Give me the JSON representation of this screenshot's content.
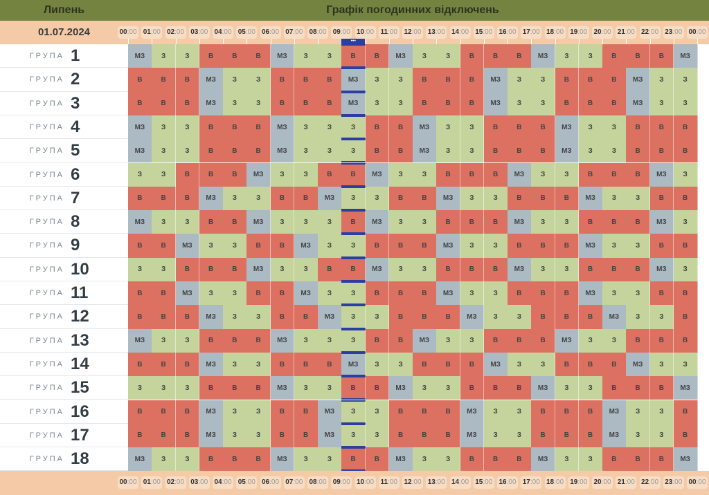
{
  "header": {
    "month": "Липень",
    "title": "Графік погодинних відключень",
    "date": "01.07.2024"
  },
  "hours": [
    "00",
    "01",
    "02",
    "03",
    "04",
    "05",
    "06",
    "07",
    "08",
    "09",
    "10",
    "11",
    "12",
    "13",
    "14",
    "15",
    "16",
    "17",
    "18",
    "19",
    "20",
    "21",
    "22",
    "23",
    "00"
  ],
  "minutes": ":00",
  "group_word": "ГРУПА",
  "current_hour": "09:00",
  "current_marker": "•••",
  "colors": {
    "В": "#dc7161",
    "З": "#c5d49c",
    "МЗ": "#abbac3",
    "header": "#748440",
    "band": "#f5cba7",
    "current": "#2c3ea0"
  },
  "groups": [
    {
      "num": "1",
      "cells": [
        "МЗ",
        "З",
        "З",
        "В",
        "В",
        "В",
        "МЗ",
        "З",
        "З",
        "В",
        "В",
        "МЗ",
        "З",
        "З",
        "В",
        "В",
        "В",
        "МЗ",
        "З",
        "З",
        "В",
        "В",
        "В",
        "МЗ"
      ]
    },
    {
      "num": "2",
      "cells": [
        "В",
        "В",
        "В",
        "МЗ",
        "З",
        "З",
        "В",
        "В",
        "В",
        "МЗ",
        "З",
        "З",
        "В",
        "В",
        "В",
        "МЗ",
        "З",
        "З",
        "В",
        "В",
        "В",
        "МЗ",
        "З",
        "З"
      ]
    },
    {
      "num": "3",
      "cells": [
        "В",
        "В",
        "В",
        "МЗ",
        "З",
        "З",
        "В",
        "В",
        "В",
        "МЗ",
        "З",
        "З",
        "В",
        "В",
        "В",
        "МЗ",
        "З",
        "З",
        "В",
        "В",
        "В",
        "МЗ",
        "З",
        "З"
      ]
    },
    {
      "num": "4",
      "cells": [
        "МЗ",
        "З",
        "З",
        "В",
        "В",
        "В",
        "МЗ",
        "З",
        "З",
        "З",
        "В",
        "В",
        "МЗ",
        "З",
        "З",
        "В",
        "В",
        "В",
        "МЗ",
        "З",
        "З",
        "В",
        "В",
        "В"
      ]
    },
    {
      "num": "5",
      "cells": [
        "МЗ",
        "З",
        "З",
        "В",
        "В",
        "В",
        "МЗ",
        "З",
        "З",
        "З",
        "В",
        "В",
        "МЗ",
        "З",
        "З",
        "В",
        "В",
        "В",
        "МЗ",
        "З",
        "З",
        "В",
        "В",
        "В"
      ]
    },
    {
      "num": "6",
      "cells": [
        "З",
        "З",
        "В",
        "В",
        "В",
        "МЗ",
        "З",
        "З",
        "В",
        "В",
        "МЗ",
        "З",
        "З",
        "В",
        "В",
        "В",
        "МЗ",
        "З",
        "З",
        "В",
        "В",
        "В",
        "МЗ",
        "З"
      ]
    },
    {
      "num": "7",
      "cells": [
        "В",
        "В",
        "В",
        "МЗ",
        "З",
        "З",
        "В",
        "В",
        "МЗ",
        "З",
        "З",
        "В",
        "В",
        "МЗ",
        "З",
        "З",
        "В",
        "В",
        "В",
        "МЗ",
        "З",
        "З",
        "В",
        "В"
      ]
    },
    {
      "num": "8",
      "cells": [
        "МЗ",
        "З",
        "З",
        "В",
        "В",
        "МЗ",
        "З",
        "З",
        "З",
        "В",
        "МЗ",
        "З",
        "З",
        "В",
        "В",
        "В",
        "МЗ",
        "З",
        "З",
        "В",
        "В",
        "В",
        "МЗ",
        "З"
      ]
    },
    {
      "num": "9",
      "cells": [
        "В",
        "В",
        "МЗ",
        "З",
        "З",
        "В",
        "В",
        "МЗ",
        "З",
        "З",
        "В",
        "В",
        "В",
        "МЗ",
        "З",
        "З",
        "В",
        "В",
        "В",
        "МЗ",
        "З",
        "З",
        "В",
        "В"
      ]
    },
    {
      "num": "10",
      "cells": [
        "З",
        "З",
        "В",
        "В",
        "В",
        "МЗ",
        "З",
        "З",
        "В",
        "В",
        "МЗ",
        "З",
        "З",
        "В",
        "В",
        "В",
        "МЗ",
        "З",
        "З",
        "В",
        "В",
        "В",
        "МЗ",
        "З"
      ]
    },
    {
      "num": "11",
      "cells": [
        "В",
        "В",
        "МЗ",
        "З",
        "З",
        "В",
        "В",
        "МЗ",
        "З",
        "З",
        "В",
        "В",
        "В",
        "МЗ",
        "З",
        "З",
        "В",
        "В",
        "В",
        "МЗ",
        "З",
        "З",
        "В",
        "В"
      ]
    },
    {
      "num": "12",
      "cells": [
        "В",
        "В",
        "В",
        "МЗ",
        "З",
        "З",
        "В",
        "В",
        "МЗ",
        "З",
        "З",
        "В",
        "В",
        "В",
        "МЗ",
        "З",
        "З",
        "В",
        "В",
        "В",
        "МЗ",
        "З",
        "З",
        "В"
      ]
    },
    {
      "num": "13",
      "cells": [
        "МЗ",
        "З",
        "З",
        "В",
        "В",
        "В",
        "МЗ",
        "З",
        "З",
        "З",
        "В",
        "В",
        "МЗ",
        "З",
        "З",
        "В",
        "В",
        "В",
        "МЗ",
        "З",
        "З",
        "В",
        "В",
        "В"
      ]
    },
    {
      "num": "14",
      "cells": [
        "В",
        "В",
        "В",
        "МЗ",
        "З",
        "З",
        "В",
        "В",
        "В",
        "МЗ",
        "З",
        "З",
        "В",
        "В",
        "В",
        "МЗ",
        "З",
        "З",
        "В",
        "В",
        "В",
        "МЗ",
        "З",
        "З"
      ]
    },
    {
      "num": "15",
      "cells": [
        "З",
        "З",
        "З",
        "В",
        "В",
        "В",
        "МЗ",
        "З",
        "З",
        "В",
        "В",
        "МЗ",
        "З",
        "З",
        "В",
        "В",
        "В",
        "МЗ",
        "З",
        "З",
        "В",
        "В",
        "В",
        "МЗ"
      ]
    },
    {
      "num": "16",
      "cells": [
        "В",
        "В",
        "В",
        "МЗ",
        "З",
        "З",
        "В",
        "В",
        "МЗ",
        "З",
        "З",
        "В",
        "В",
        "В",
        "МЗ",
        "З",
        "З",
        "В",
        "В",
        "В",
        "МЗ",
        "З",
        "З",
        "В"
      ]
    },
    {
      "num": "17",
      "cells": [
        "В",
        "В",
        "В",
        "МЗ",
        "З",
        "З",
        "В",
        "В",
        "МЗ",
        "З",
        "З",
        "В",
        "В",
        "В",
        "МЗ",
        "З",
        "З",
        "В",
        "В",
        "В",
        "МЗ",
        "З",
        "З",
        "В"
      ]
    },
    {
      "num": "18",
      "cells": [
        "МЗ",
        "З",
        "З",
        "В",
        "В",
        "В",
        "МЗ",
        "З",
        "З",
        "В",
        "В",
        "МЗ",
        "З",
        "З",
        "В",
        "В",
        "В",
        "МЗ",
        "З",
        "З",
        "В",
        "В",
        "В",
        "МЗ"
      ]
    }
  ]
}
